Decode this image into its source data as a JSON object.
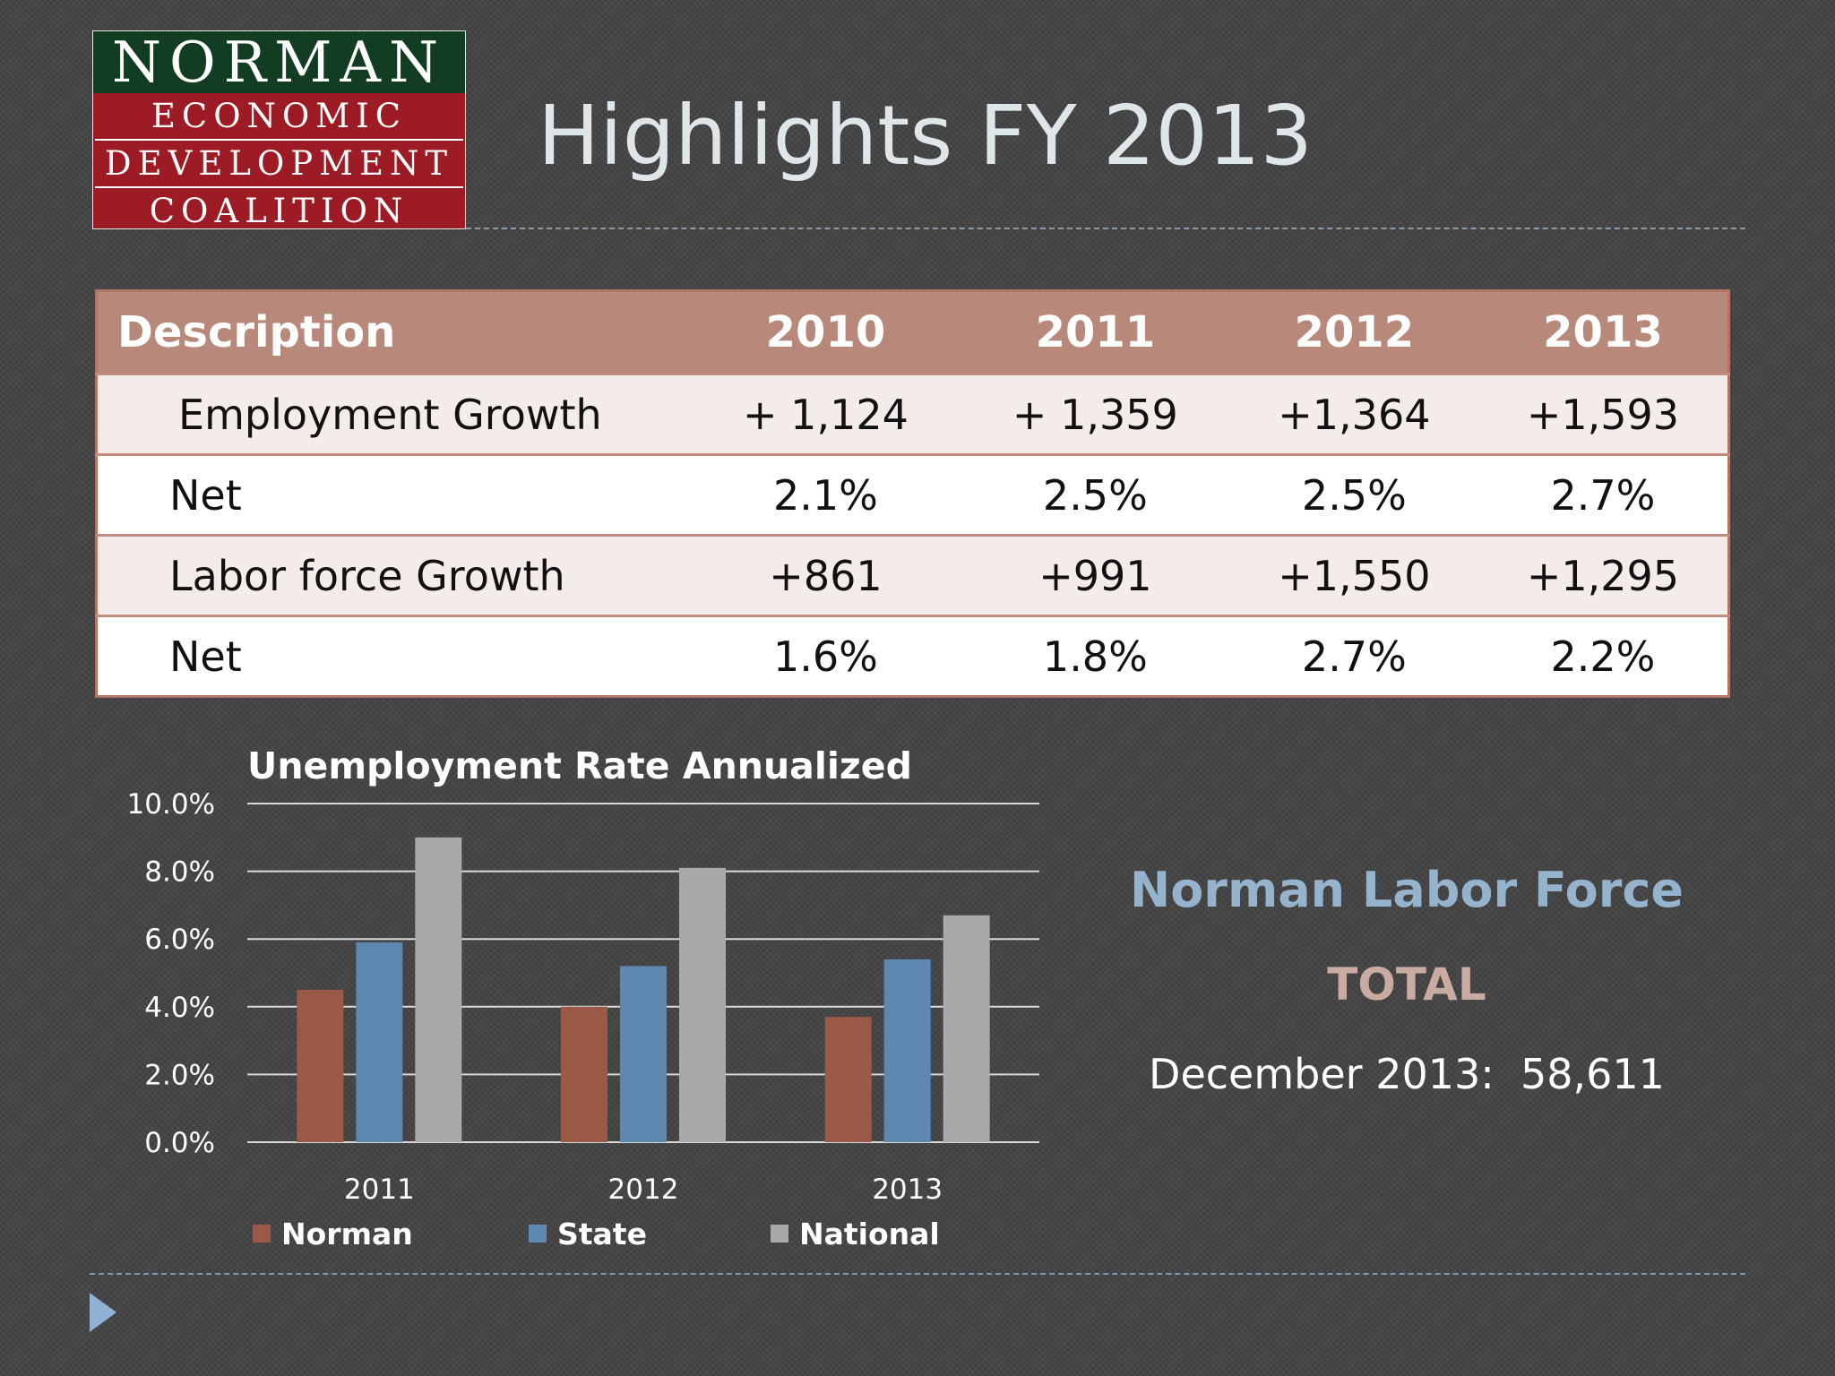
{
  "logo": {
    "line1": "NORMAN",
    "line2": "ECONOMIC",
    "line3": "DEVELOPMENT",
    "line4": "COALITION"
  },
  "title": "Highlights FY 2013",
  "table": {
    "header": [
      "Description",
      "2010",
      "2011",
      "2012",
      "2013"
    ],
    "rows": [
      [
        "Employment Growth",
        "+ 1,124",
        "+ 1,359",
        "+1,364",
        "+1,593"
      ],
      [
        "Net",
        "2.1%",
        "2.5%",
        "2.5%",
        "2.7%"
      ],
      [
        "Labor force Growth",
        "+861",
        "+991",
        "+1,550",
        "+1,295"
      ],
      [
        "Net",
        "1.6%",
        "1.8%",
        "2.7%",
        "2.2%"
      ]
    ]
  },
  "chart_data": {
    "type": "bar",
    "title": "Unemployment Rate Annualized",
    "categories": [
      "2011",
      "2012",
      "2013"
    ],
    "series": [
      {
        "name": "Norman",
        "values": [
          4.5,
          4.0,
          3.7
        ],
        "color": "#9a5a47"
      },
      {
        "name": "State",
        "values": [
          5.9,
          5.2,
          5.4
        ],
        "color": "#5f88b0"
      },
      {
        "name": "National",
        "values": [
          9.0,
          8.1,
          6.7
        ],
        "color": "#a9a9a9"
      }
    ],
    "ylim": [
      0,
      10
    ],
    "yticks": [
      "0.0%",
      "2.0%",
      "4.0%",
      "6.0%",
      "8.0%",
      "10.0%"
    ],
    "grid": true,
    "legend": "bottom"
  },
  "labor_force": {
    "heading": "Norman Labor Force",
    "total_label": "TOTAL",
    "line": "December 2013:  58,611"
  }
}
